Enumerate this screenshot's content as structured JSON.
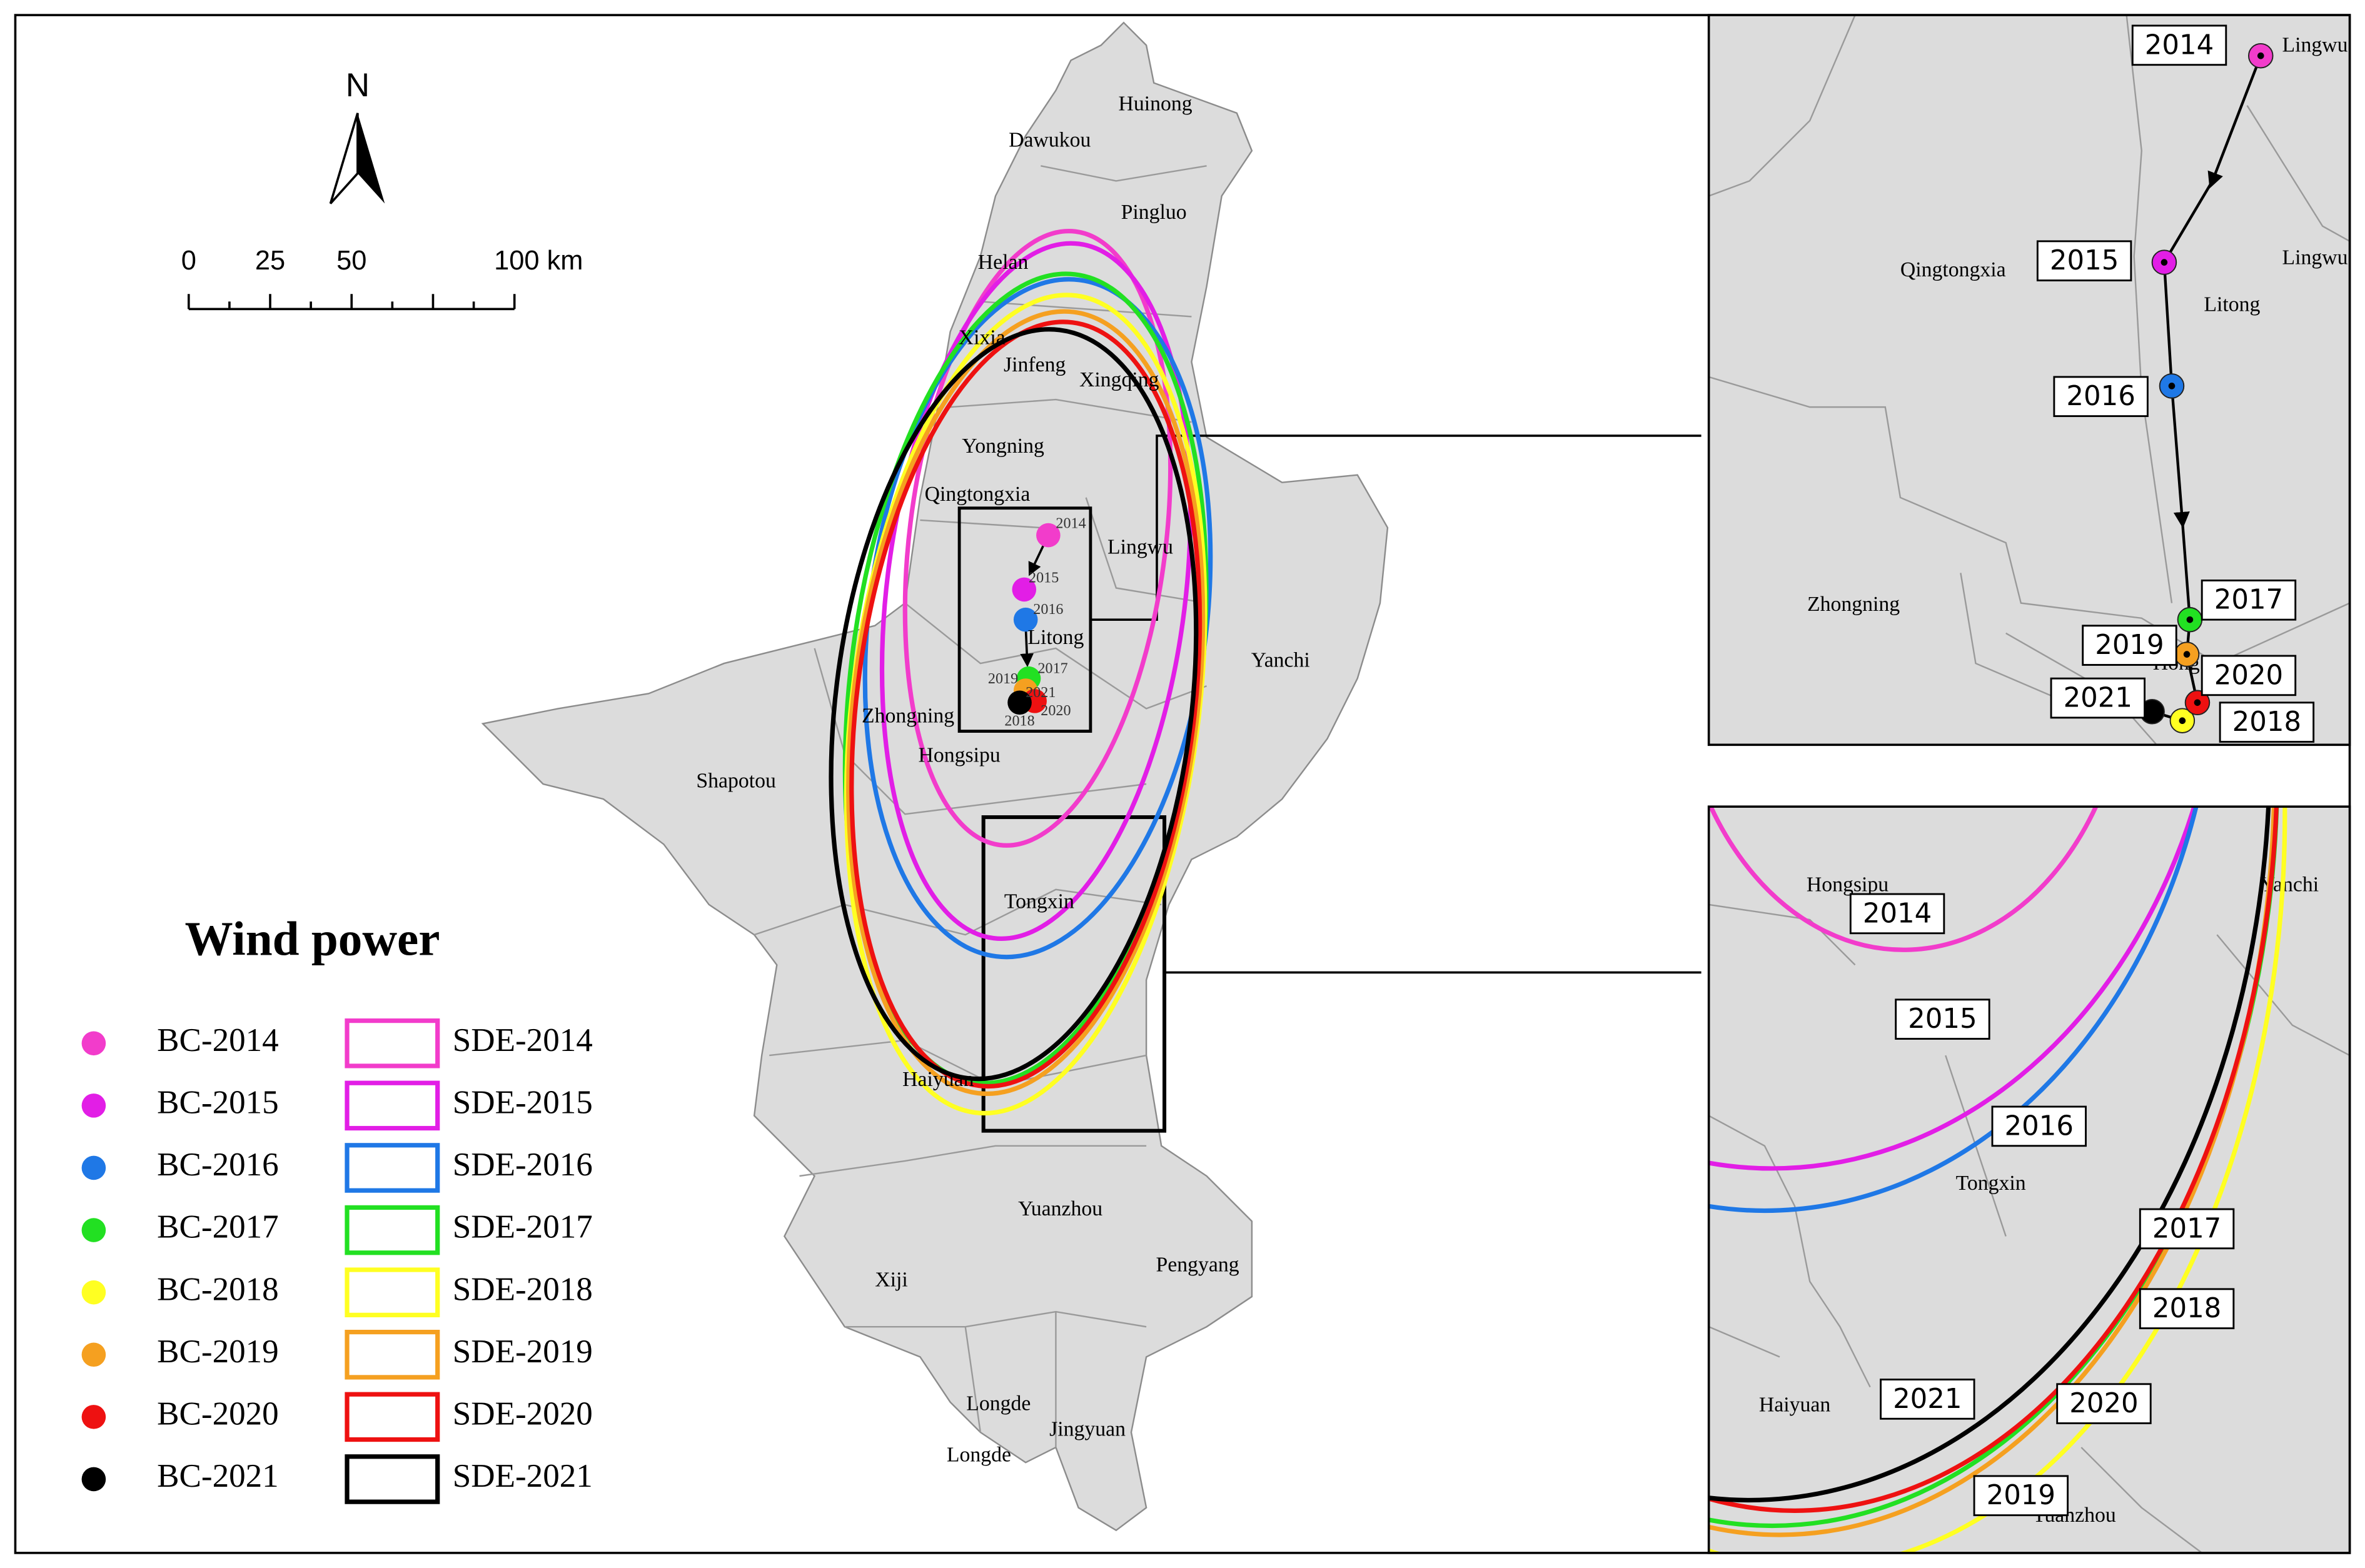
{
  "north_arrow": "N",
  "scale_bar": {
    "labels": [
      "0",
      "25",
      "50",
      "100 km"
    ]
  },
  "legend": {
    "title": "Wind power",
    "points": [
      {
        "label": "BC-2014",
        "color": "#f23ccb"
      },
      {
        "label": "BC-2015",
        "color": "#e21ee6"
      },
      {
        "label": "BC-2016",
        "color": "#1f78e6"
      },
      {
        "label": "BC-2017",
        "color": "#22e022"
      },
      {
        "label": "BC-2018",
        "color": "#ffff22"
      },
      {
        "label": "BC-2019",
        "color": "#f5a020"
      },
      {
        "label": "BC-2020",
        "color": "#ee1111"
      },
      {
        "label": "BC-2021",
        "color": "#000000"
      }
    ],
    "ellipses": [
      {
        "label": "SDE-2014",
        "color": "#f23ccb"
      },
      {
        "label": "SDE-2015",
        "color": "#e21ee6"
      },
      {
        "label": "SDE-2016",
        "color": "#1f78e6"
      },
      {
        "label": "SDE-2017",
        "color": "#22e022"
      },
      {
        "label": "SDE-2018",
        "color": "#ffff22"
      },
      {
        "label": "SDE-2019",
        "color": "#f5a020"
      },
      {
        "label": "SDE-2020",
        "color": "#ee1111"
      },
      {
        "label": "SDE-2021",
        "color": "#000000"
      }
    ]
  },
  "main_map": {
    "place_labels": [
      "Huinong",
      "Dawukou",
      "Pingluo",
      "Helan",
      "Xixia",
      "Jinfeng",
      "Xingqing",
      "Yongning",
      "Qingtongxia",
      "Lingwu",
      "Litong",
      "Yanchi",
      "Zhongning",
      "Hongsipu",
      "Shapotou",
      "Tongxin",
      "Haiyuan",
      "Yuanzhou",
      "Xiji",
      "Pengyang",
      "Longde",
      "Jingyuan",
      "Longde"
    ],
    "year_labels": [
      "2014",
      "2015",
      "2016",
      "2017",
      "2018",
      "2019",
      "2020",
      "2021"
    ]
  },
  "inset_top": {
    "place_labels": [
      "Lingwu",
      "Qingtongxia",
      "Litong",
      "Lingwu",
      "Zhongning",
      "Hong"
    ],
    "year_labels": [
      "2014",
      "2015",
      "2016",
      "2017",
      "2018",
      "2019",
      "2020",
      "2021"
    ]
  },
  "inset_bottom": {
    "place_labels": [
      "Hongsipu",
      "Yanchi",
      "Tongxin",
      "Haiyuan",
      "Yuanzhou"
    ],
    "year_labels": [
      "2014",
      "2015",
      "2016",
      "2017",
      "2018",
      "2019",
      "2020",
      "2021"
    ]
  }
}
